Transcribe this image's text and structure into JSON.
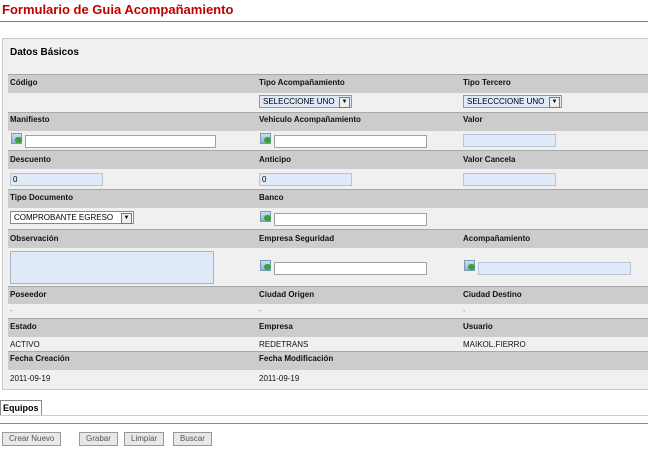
{
  "page_title": "Formulario de Guia Acompañamiento",
  "section_title": "Datos Básicos",
  "colors": {
    "title": "#c00000",
    "band": "#cccccc",
    "panel": "#f0f0f0",
    "readonly_input": "#dfe9f8"
  },
  "fields": {
    "codigo": {
      "label": "Código"
    },
    "tipo_acompanamiento": {
      "label": "Tipo Acompañamiento",
      "value": "SELECCIONE UNO"
    },
    "tipo_tercero": {
      "label": "Tipo Tercero",
      "value": "SELECCCIONE UNO"
    },
    "manifiesto": {
      "label": "Manifiesto",
      "value": ""
    },
    "vehiculo": {
      "label": "Vehiculo Acompañamiento",
      "value": ""
    },
    "valor": {
      "label": "Valor",
      "value": ""
    },
    "descuento": {
      "label": "Descuento",
      "value": "0"
    },
    "anticipo": {
      "label": "Anticipo",
      "value": "0"
    },
    "valor_cancela": {
      "label": "Valor Cancela",
      "value": ""
    },
    "tipo_documento": {
      "label": "Tipo Documento",
      "value": "COMPROBANTE EGRESO"
    },
    "banco": {
      "label": "Banco",
      "value": ""
    },
    "observacion": {
      "label": "Observación",
      "value": ""
    },
    "empresa_seguridad": {
      "label": "Empresa Seguridad",
      "value": ""
    },
    "acompanamiento": {
      "label": "Acompañamiento",
      "value": ""
    },
    "poseedor": {
      "label": "Poseedor",
      "value": "-"
    },
    "ciudad_origen": {
      "label": "Ciudad Origen",
      "value": "-"
    },
    "ciudad_destino": {
      "label": "Ciudad Destino",
      "value": "-"
    },
    "estado": {
      "label": "Estado",
      "value": "ACTIVO"
    },
    "empresa": {
      "label": "Empresa",
      "value": "REDETRANS"
    },
    "usuario": {
      "label": "Usuario",
      "value": "MAIKOL.FIERRO"
    },
    "fecha_creacion": {
      "label": "Fecha Creación",
      "value": "2011-09-19"
    },
    "fecha_modificacion": {
      "label": "Fecha Modificación",
      "value": "2011-09-19"
    }
  },
  "tabs": [
    {
      "label": "Equipos"
    }
  ],
  "buttons": {
    "crear": "Crear Nuevo",
    "grabar": "Grabar",
    "limpiar": "Limpiar",
    "buscar": "Buscar"
  },
  "icons": {
    "lookup": "search-lookup-icon",
    "dropdown": "chevron-down-icon"
  }
}
